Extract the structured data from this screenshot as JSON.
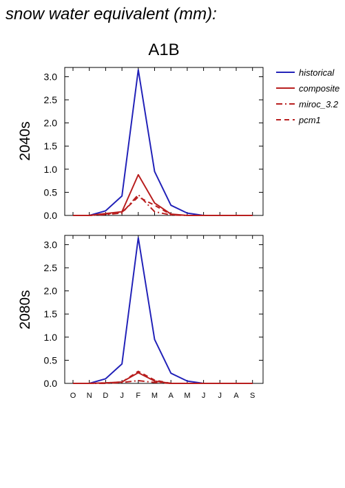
{
  "title": "snow water equivalent (mm):",
  "scenario": "A1B",
  "months": [
    "O",
    "N",
    "D",
    "J",
    "F",
    "M",
    "A",
    "M",
    "J",
    "J",
    "A",
    "S"
  ],
  "legend": [
    {
      "label": "historical",
      "color": "#2121b8",
      "dash": "solid"
    },
    {
      "label": "composite",
      "color": "#b81d1d",
      "dash": "solid"
    },
    {
      "label": "miroc_3.2",
      "color": "#b81d1d",
      "dash": "dashdot"
    },
    {
      "label": "pcm1",
      "color": "#b81d1d",
      "dash": "dashed"
    }
  ],
  "chart_data": [
    {
      "type": "line",
      "period_label": "2040s",
      "categories": [
        "O",
        "N",
        "D",
        "J",
        "F",
        "M",
        "A",
        "M",
        "J",
        "J",
        "A",
        "S"
      ],
      "ylim": [
        0,
        3.2
      ],
      "yticks": [
        "0.0",
        "0.5",
        "1.0",
        "1.5",
        "2.0",
        "2.5",
        "3.0"
      ],
      "series": [
        {
          "name": "historical",
          "color": "#2121b8",
          "dash": "solid",
          "values": [
            0,
            0,
            0.1,
            0.42,
            3.15,
            0.95,
            0.22,
            0.05,
            0,
            0,
            0,
            0
          ]
        },
        {
          "name": "composite",
          "color": "#b81d1d",
          "dash": "solid",
          "values": [
            0,
            0,
            0.04,
            0.08,
            0.88,
            0.27,
            0.03,
            0,
            0,
            0,
            0,
            0
          ]
        },
        {
          "name": "miroc_3.2",
          "color": "#b81d1d",
          "dash": "dashdot",
          "values": [
            0,
            0,
            0.02,
            0.05,
            0.45,
            0.08,
            0.01,
            0,
            0,
            0,
            0,
            0
          ]
        },
        {
          "name": "pcm1",
          "color": "#b81d1d",
          "dash": "dashed",
          "values": [
            0,
            0,
            0.03,
            0.07,
            0.4,
            0.22,
            0.02,
            0,
            0,
            0,
            0,
            0
          ]
        }
      ]
    },
    {
      "type": "line",
      "period_label": "2080s",
      "categories": [
        "O",
        "N",
        "D",
        "J",
        "F",
        "M",
        "A",
        "M",
        "J",
        "J",
        "A",
        "S"
      ],
      "ylim": [
        0,
        3.2
      ],
      "yticks": [
        "0.0",
        "0.5",
        "1.0",
        "1.5",
        "2.0",
        "2.5",
        "3.0"
      ],
      "series": [
        {
          "name": "historical",
          "color": "#2121b8",
          "dash": "solid",
          "values": [
            0,
            0,
            0.1,
            0.42,
            3.15,
            0.95,
            0.22,
            0.05,
            0,
            0,
            0,
            0
          ]
        },
        {
          "name": "composite",
          "color": "#b81d1d",
          "dash": "solid",
          "values": [
            0,
            0,
            0.01,
            0.03,
            0.23,
            0.05,
            0,
            0,
            0,
            0,
            0,
            0
          ]
        },
        {
          "name": "miroc_3.2",
          "color": "#b81d1d",
          "dash": "dashdot",
          "values": [
            0,
            0,
            0,
            0.02,
            0.06,
            0.02,
            0,
            0,
            0,
            0,
            0,
            0
          ]
        },
        {
          "name": "pcm1",
          "color": "#b81d1d",
          "dash": "dashed",
          "values": [
            0,
            0,
            0.01,
            0.03,
            0.26,
            0.07,
            0,
            0,
            0,
            0,
            0,
            0
          ]
        }
      ]
    }
  ]
}
